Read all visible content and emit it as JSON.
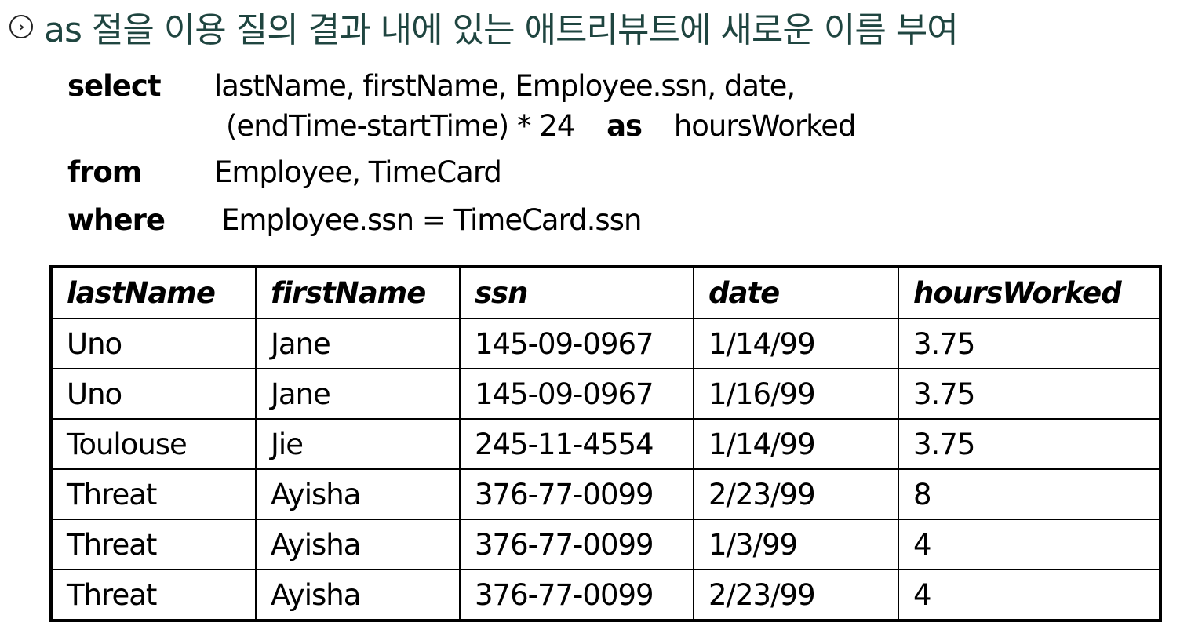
{
  "title": {
    "icon": "circle-chevron-right-icon",
    "text": "as 절을 이용 질의 결과 내에 있는 애트리뷰트에 새로운 이름 부여",
    "color": "#1f4540"
  },
  "query": {
    "select_kw": "select",
    "select_line1": "lastName,  firstName,  Employee.ssn,  date,",
    "select_line2_a": "(endTime-startTime) * 24",
    "as_kw": "as",
    "select_line2_b": "hoursWorked",
    "from_kw": "from",
    "from_text": "Employee,  TimeCard",
    "where_kw": "where",
    "where_text": "Employee.ssn  =  TimeCard.ssn"
  },
  "table": {
    "headers": [
      "lastName",
      "firstName",
      "ssn",
      "date",
      "hoursWorked"
    ],
    "rows": [
      [
        "Uno",
        "Jane",
        "145-09-0967",
        "1/14/99",
        "3.75"
      ],
      [
        "Uno",
        "Jane",
        "145-09-0967",
        "1/16/99",
        "3.75"
      ],
      [
        "Toulouse",
        "Jie",
        "245-11-4554",
        "1/14/99",
        "3.75"
      ],
      [
        "Threat",
        "Ayisha",
        "376-77-0099",
        "2/23/99",
        "8"
      ],
      [
        "Threat",
        "Ayisha",
        "376-77-0099",
        "1/3/99",
        "4"
      ],
      [
        "Threat",
        "Ayisha",
        "376-77-0099",
        "2/23/99",
        "4"
      ]
    ]
  }
}
